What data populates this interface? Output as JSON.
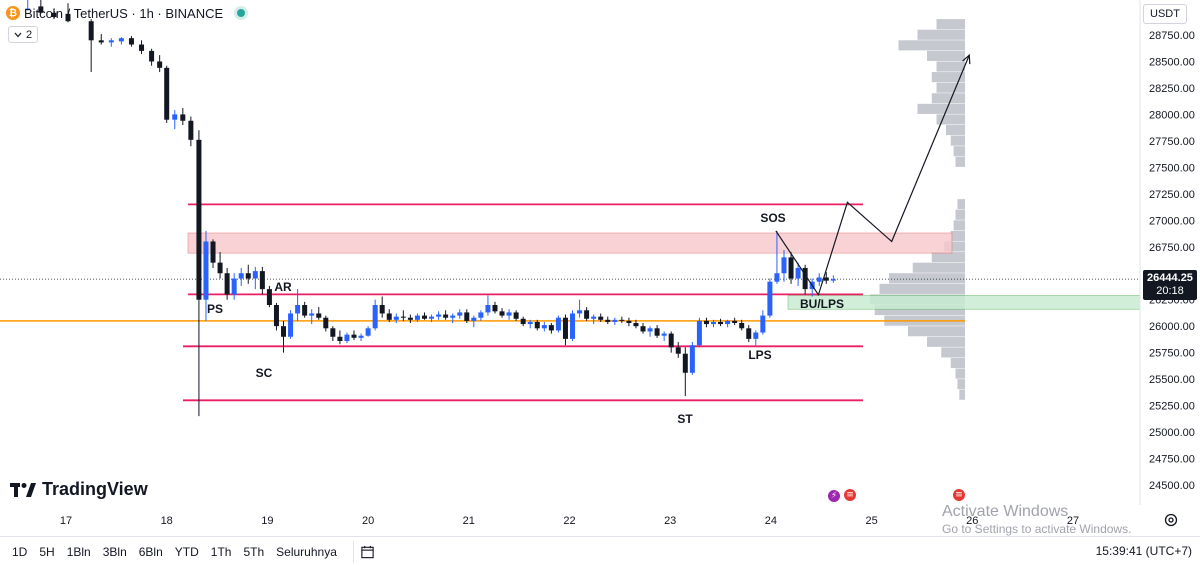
{
  "header": {
    "symbol": "Bitcoin / TetherUS · 1h · BINANCE",
    "indicator_count": "2",
    "currency": "USDT",
    "icons": {
      "coin": "bitcoin-icon",
      "status": "market-open-dot"
    }
  },
  "price_axis": {
    "ticks": [
      "28750.00",
      "28500.00",
      "28250.00",
      "28000.00",
      "27750.00",
      "27500.00",
      "27250.00",
      "27000.00",
      "26750.00",
      "26250.00",
      "26000.00",
      "25750.00",
      "25500.00",
      "25250.00",
      "25000.00",
      "24750.00",
      "24500.00"
    ],
    "current_price": "26444.25",
    "countdown": "20:18"
  },
  "time_axis": {
    "ticks": [
      "17",
      "18",
      "19",
      "20",
      "21",
      "22",
      "23",
      "24",
      "25",
      "26",
      "27"
    ]
  },
  "annotations": [
    "PS",
    "AR",
    "SC",
    "ST",
    "LPS",
    "SOS",
    "BU/LPS"
  ],
  "branding": {
    "logo": "TradingView"
  },
  "toolbar": {
    "timeframes": [
      "1D",
      "5H",
      "1Bln",
      "3Bln",
      "6Bln",
      "YTD",
      "1Th",
      "5Th",
      "Seluruhnya"
    ],
    "clock": "15:39:41 (UTC+7)"
  },
  "watermark": {
    "title": "Activate Windows",
    "subtitle": "Go to Settings to activate Windows."
  },
  "colors": {
    "up": "#2962ff",
    "down": "#131722",
    "range_line": "#e91e63",
    "supply_zone": "#f8c8cc",
    "demand_zone": "#c8ecd2",
    "poc_line": "#ff9800",
    "volume_profile": "#b2b5be"
  },
  "chart_data": {
    "type": "candlestick",
    "x_label": "",
    "y_label": "",
    "ylim": [
      24400,
      28950
    ],
    "xlim": [
      16.5,
      27.6
    ],
    "trading_range": {
      "top": 26300,
      "bottom": 25810,
      "ar_high": 26350,
      "sc_low": 25750
    },
    "upper_resistance": 27150,
    "lower_support": 25300,
    "supply_zone": [
      26690,
      26880
    ],
    "demand_zone": [
      26160,
      26290
    ],
    "point_of_control": 26050,
    "current_price": 26444.25,
    "projection_path": [
      {
        "x": 24.47,
        "y": 26290
      },
      {
        "x": 24.76,
        "y": 27170
      },
      {
        "x": 25.2,
        "y": 26800
      },
      {
        "x": 25.97,
        "y": 28560
      }
    ],
    "sos_path": [
      {
        "x": 24.05,
        "y": 26900
      },
      {
        "x": 24.47,
        "y": 26300
      }
    ],
    "candles": [
      {
        "x": 16.62,
        "o": 29000,
        "h": 29100,
        "l": 28980,
        "c": 29000
      },
      {
        "x": 16.75,
        "o": 29020,
        "h": 29090,
        "l": 28950,
        "c": 28960
      },
      {
        "x": 16.88,
        "o": 28960,
        "h": 29000,
        "l": 28900,
        "c": 28920
      },
      {
        "x": 17.02,
        "o": 28950,
        "h": 29050,
        "l": 28870,
        "c": 28880
      },
      {
        "x": 17.25,
        "o": 28880,
        "h": 28900,
        "l": 28400,
        "c": 28700
      },
      {
        "x": 17.35,
        "o": 28700,
        "h": 28760,
        "l": 28660,
        "c": 28680
      },
      {
        "x": 17.45,
        "o": 28680,
        "h": 28720,
        "l": 28640,
        "c": 28700
      },
      {
        "x": 17.55,
        "o": 28690,
        "h": 28730,
        "l": 28660,
        "c": 28720
      },
      {
        "x": 17.65,
        "o": 28720,
        "h": 28740,
        "l": 28640,
        "c": 28660
      },
      {
        "x": 17.75,
        "o": 28660,
        "h": 28700,
        "l": 28570,
        "c": 28600
      },
      {
        "x": 17.85,
        "o": 28600,
        "h": 28620,
        "l": 28460,
        "c": 28500
      },
      {
        "x": 17.93,
        "o": 28500,
        "h": 28560,
        "l": 28400,
        "c": 28440
      },
      {
        "x": 18.0,
        "o": 28440,
        "h": 28460,
        "l": 27920,
        "c": 27950
      },
      {
        "x": 18.08,
        "o": 27950,
        "h": 28040,
        "l": 27860,
        "c": 28000
      },
      {
        "x": 18.16,
        "o": 28000,
        "h": 28060,
        "l": 27900,
        "c": 27940
      },
      {
        "x": 18.24,
        "o": 27940,
        "h": 27980,
        "l": 27700,
        "c": 27760
      },
      {
        "x": 18.32,
        "o": 27760,
        "h": 27850,
        "l": 25150,
        "c": 26250
      },
      {
        "x": 18.39,
        "o": 26250,
        "h": 26900,
        "l": 26050,
        "c": 26800
      },
      {
        "x": 18.46,
        "o": 26800,
        "h": 26820,
        "l": 26550,
        "c": 26600
      },
      {
        "x": 18.53,
        "o": 26600,
        "h": 26700,
        "l": 26450,
        "c": 26500
      },
      {
        "x": 18.6,
        "o": 26500,
        "h": 26550,
        "l": 26250,
        "c": 26300
      },
      {
        "x": 18.67,
        "o": 26300,
        "h": 26500,
        "l": 26250,
        "c": 26450
      },
      {
        "x": 18.74,
        "o": 26450,
        "h": 26550,
        "l": 26380,
        "c": 26500
      },
      {
        "x": 18.81,
        "o": 26500,
        "h": 26580,
        "l": 26400,
        "c": 26450
      },
      {
        "x": 18.88,
        "o": 26450,
        "h": 26560,
        "l": 26350,
        "c": 26520
      },
      {
        "x": 18.95,
        "o": 26520,
        "h": 26560,
        "l": 26300,
        "c": 26350
      },
      {
        "x": 19.02,
        "o": 26350,
        "h": 26380,
        "l": 26180,
        "c": 26200
      },
      {
        "x": 19.09,
        "o": 26200,
        "h": 26220,
        "l": 25960,
        "c": 26000
      },
      {
        "x": 19.16,
        "o": 26000,
        "h": 26050,
        "l": 25750,
        "c": 25900
      },
      {
        "x": 19.23,
        "o": 25900,
        "h": 26150,
        "l": 25880,
        "c": 26120
      },
      {
        "x": 19.3,
        "o": 26120,
        "h": 26350,
        "l": 26050,
        "c": 26200
      },
      {
        "x": 19.37,
        "o": 26200,
        "h": 26230,
        "l": 26080,
        "c": 26100
      },
      {
        "x": 19.44,
        "o": 26100,
        "h": 26160,
        "l": 26020,
        "c": 26120
      },
      {
        "x": 19.51,
        "o": 26120,
        "h": 26180,
        "l": 26060,
        "c": 26080
      },
      {
        "x": 19.58,
        "o": 26080,
        "h": 26100,
        "l": 25950,
        "c": 25980
      },
      {
        "x": 19.65,
        "o": 25980,
        "h": 26000,
        "l": 25860,
        "c": 25900
      },
      {
        "x": 19.72,
        "o": 25900,
        "h": 25960,
        "l": 25830,
        "c": 25860
      },
      {
        "x": 19.79,
        "o": 25860,
        "h": 25940,
        "l": 25840,
        "c": 25920
      },
      {
        "x": 19.86,
        "o": 25920,
        "h": 25960,
        "l": 25870,
        "c": 25890
      },
      {
        "x": 19.93,
        "o": 25890,
        "h": 25930,
        "l": 25860,
        "c": 25910
      },
      {
        "x": 20.0,
        "o": 25910,
        "h": 26000,
        "l": 25900,
        "c": 25980
      },
      {
        "x": 20.07,
        "o": 25980,
        "h": 26250,
        "l": 25960,
        "c": 26200
      },
      {
        "x": 20.14,
        "o": 26200,
        "h": 26280,
        "l": 26080,
        "c": 26120
      },
      {
        "x": 20.21,
        "o": 26120,
        "h": 26160,
        "l": 26040,
        "c": 26060
      },
      {
        "x": 20.28,
        "o": 26060,
        "h": 26120,
        "l": 26030,
        "c": 26090
      },
      {
        "x": 20.35,
        "o": 26090,
        "h": 26150,
        "l": 26050,
        "c": 26080
      },
      {
        "x": 20.42,
        "o": 26080,
        "h": 26110,
        "l": 26030,
        "c": 26060
      },
      {
        "x": 20.49,
        "o": 26060,
        "h": 26120,
        "l": 26040,
        "c": 26100
      },
      {
        "x": 20.56,
        "o": 26100,
        "h": 26130,
        "l": 26060,
        "c": 26070
      },
      {
        "x": 20.63,
        "o": 26070,
        "h": 26110,
        "l": 26040,
        "c": 26090
      },
      {
        "x": 20.7,
        "o": 26090,
        "h": 26140,
        "l": 26060,
        "c": 26110
      },
      {
        "x": 20.77,
        "o": 26110,
        "h": 26150,
        "l": 26060,
        "c": 26080
      },
      {
        "x": 20.84,
        "o": 26080,
        "h": 26120,
        "l": 26030,
        "c": 26100
      },
      {
        "x": 20.91,
        "o": 26100,
        "h": 26160,
        "l": 26070,
        "c": 26130
      },
      {
        "x": 20.98,
        "o": 26130,
        "h": 26160,
        "l": 26030,
        "c": 26050
      },
      {
        "x": 21.05,
        "o": 26050,
        "h": 26100,
        "l": 25990,
        "c": 26080
      },
      {
        "x": 21.12,
        "o": 26080,
        "h": 26150,
        "l": 26050,
        "c": 26130
      },
      {
        "x": 21.19,
        "o": 26130,
        "h": 26290,
        "l": 26100,
        "c": 26200
      },
      {
        "x": 21.26,
        "o": 26200,
        "h": 26230,
        "l": 26120,
        "c": 26140
      },
      {
        "x": 21.33,
        "o": 26140,
        "h": 26170,
        "l": 26080,
        "c": 26100
      },
      {
        "x": 21.4,
        "o": 26100,
        "h": 26160,
        "l": 26060,
        "c": 26130
      },
      {
        "x": 21.47,
        "o": 26130,
        "h": 26150,
        "l": 26050,
        "c": 26070
      },
      {
        "x": 21.54,
        "o": 26070,
        "h": 26090,
        "l": 26000,
        "c": 26020
      },
      {
        "x": 21.61,
        "o": 26020,
        "h": 26060,
        "l": 25980,
        "c": 26040
      },
      {
        "x": 21.68,
        "o": 26040,
        "h": 26060,
        "l": 25960,
        "c": 25980
      },
      {
        "x": 21.75,
        "o": 25980,
        "h": 26040,
        "l": 25950,
        "c": 26010
      },
      {
        "x": 21.82,
        "o": 26010,
        "h": 26030,
        "l": 25930,
        "c": 25960
      },
      {
        "x": 21.89,
        "o": 25960,
        "h": 26100,
        "l": 25940,
        "c": 26080
      },
      {
        "x": 21.96,
        "o": 26080,
        "h": 26110,
        "l": 25820,
        "c": 25880
      },
      {
        "x": 22.03,
        "o": 25880,
        "h": 26150,
        "l": 25860,
        "c": 26120
      },
      {
        "x": 22.1,
        "o": 26120,
        "h": 26250,
        "l": 26080,
        "c": 26150
      },
      {
        "x": 22.17,
        "o": 26150,
        "h": 26180,
        "l": 26050,
        "c": 26070
      },
      {
        "x": 22.24,
        "o": 26070,
        "h": 26110,
        "l": 26020,
        "c": 26090
      },
      {
        "x": 22.31,
        "o": 26090,
        "h": 26120,
        "l": 26040,
        "c": 26060
      },
      {
        "x": 22.38,
        "o": 26060,
        "h": 26090,
        "l": 26020,
        "c": 26040
      },
      {
        "x": 22.45,
        "o": 26040,
        "h": 26080,
        "l": 26010,
        "c": 26060
      },
      {
        "x": 22.52,
        "o": 26060,
        "h": 26090,
        "l": 26030,
        "c": 26050
      },
      {
        "x": 22.59,
        "o": 26050,
        "h": 26080,
        "l": 26000,
        "c": 26030
      },
      {
        "x": 22.66,
        "o": 26030,
        "h": 26060,
        "l": 25980,
        "c": 26000
      },
      {
        "x": 22.73,
        "o": 26000,
        "h": 26030,
        "l": 25930,
        "c": 25950
      },
      {
        "x": 22.8,
        "o": 25950,
        "h": 26000,
        "l": 25900,
        "c": 25980
      },
      {
        "x": 22.87,
        "o": 25980,
        "h": 26010,
        "l": 25890,
        "c": 25910
      },
      {
        "x": 22.94,
        "o": 25910,
        "h": 25950,
        "l": 25860,
        "c": 25930
      },
      {
        "x": 23.01,
        "o": 25930,
        "h": 25950,
        "l": 25750,
        "c": 25800
      },
      {
        "x": 23.08,
        "o": 25800,
        "h": 25850,
        "l": 25700,
        "c": 25740
      },
      {
        "x": 23.15,
        "o": 25740,
        "h": 25800,
        "l": 25340,
        "c": 25560
      },
      {
        "x": 23.22,
        "o": 25560,
        "h": 25850,
        "l": 25540,
        "c": 25820
      },
      {
        "x": 23.29,
        "o": 25820,
        "h": 26080,
        "l": 25800,
        "c": 26050
      },
      {
        "x": 23.36,
        "o": 26050,
        "h": 26080,
        "l": 25990,
        "c": 26020
      },
      {
        "x": 23.43,
        "o": 26020,
        "h": 26060,
        "l": 25990,
        "c": 26040
      },
      {
        "x": 23.5,
        "o": 26040,
        "h": 26070,
        "l": 26000,
        "c": 26020
      },
      {
        "x": 23.57,
        "o": 26020,
        "h": 26060,
        "l": 25990,
        "c": 26050
      },
      {
        "x": 23.64,
        "o": 26050,
        "h": 26080,
        "l": 26010,
        "c": 26030
      },
      {
        "x": 23.71,
        "o": 26030,
        "h": 26060,
        "l": 25960,
        "c": 25980
      },
      {
        "x": 23.78,
        "o": 25980,
        "h": 26010,
        "l": 25850,
        "c": 25880
      },
      {
        "x": 23.85,
        "o": 25880,
        "h": 25960,
        "l": 25820,
        "c": 25940
      },
      {
        "x": 23.92,
        "o": 25940,
        "h": 26150,
        "l": 25920,
        "c": 26100
      },
      {
        "x": 23.99,
        "o": 26100,
        "h": 26450,
        "l": 26080,
        "c": 26420
      },
      {
        "x": 24.06,
        "o": 26420,
        "h": 26900,
        "l": 26400,
        "c": 26500
      },
      {
        "x": 24.13,
        "o": 26500,
        "h": 26720,
        "l": 26420,
        "c": 26650
      },
      {
        "x": 24.2,
        "o": 26650,
        "h": 26700,
        "l": 26400,
        "c": 26450
      },
      {
        "x": 24.27,
        "o": 26450,
        "h": 26600,
        "l": 26380,
        "c": 26550
      },
      {
        "x": 24.34,
        "o": 26550,
        "h": 26580,
        "l": 26300,
        "c": 26350
      },
      {
        "x": 24.41,
        "o": 26350,
        "h": 26450,
        "l": 26280,
        "c": 26420
      },
      {
        "x": 24.48,
        "o": 26420,
        "h": 26500,
        "l": 26380,
        "c": 26460
      },
      {
        "x": 24.55,
        "o": 26460,
        "h": 26510,
        "l": 26400,
        "c": 26430
      },
      {
        "x": 24.62,
        "o": 26430,
        "h": 26480,
        "l": 26410,
        "c": 26444
      }
    ],
    "volume_profile": [
      {
        "y": 28850,
        "w": 0.3
      },
      {
        "y": 28750,
        "w": 0.5
      },
      {
        "y": 28650,
        "w": 0.7
      },
      {
        "y": 28550,
        "w": 0.4
      },
      {
        "y": 28450,
        "w": 0.3
      },
      {
        "y": 28350,
        "w": 0.35
      },
      {
        "y": 28250,
        "w": 0.3
      },
      {
        "y": 28150,
        "w": 0.35
      },
      {
        "y": 28050,
        "w": 0.5
      },
      {
        "y": 27950,
        "w": 0.3
      },
      {
        "y": 27850,
        "w": 0.2
      },
      {
        "y": 27750,
        "w": 0.15
      },
      {
        "y": 27650,
        "w": 0.12
      },
      {
        "y": 27550,
        "w": 0.1
      },
      {
        "y": 27150,
        "w": 0.08
      },
      {
        "y": 27050,
        "w": 0.1
      },
      {
        "y": 26950,
        "w": 0.12
      },
      {
        "y": 26850,
        "w": 0.15
      },
      {
        "y": 26750,
        "w": 0.22
      },
      {
        "y": 26650,
        "w": 0.35
      },
      {
        "y": 26550,
        "w": 0.55
      },
      {
        "y": 26450,
        "w": 0.8
      },
      {
        "y": 26350,
        "w": 0.9
      },
      {
        "y": 26250,
        "w": 1.0
      },
      {
        "y": 26150,
        "w": 0.95
      },
      {
        "y": 26050,
        "w": 0.85
      },
      {
        "y": 25950,
        "w": 0.6
      },
      {
        "y": 25850,
        "w": 0.4
      },
      {
        "y": 25750,
        "w": 0.25
      },
      {
        "y": 25650,
        "w": 0.15
      },
      {
        "y": 25550,
        "w": 0.1
      },
      {
        "y": 25450,
        "w": 0.08
      },
      {
        "y": 25350,
        "w": 0.06
      }
    ]
  }
}
